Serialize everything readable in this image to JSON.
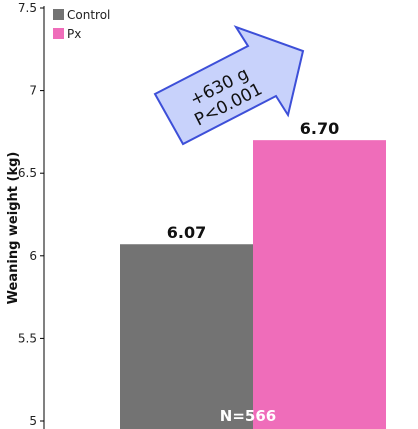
{
  "chart_data": {
    "type": "bar",
    "categories": [
      "Control",
      "Px"
    ],
    "values": [
      6.07,
      6.7
    ],
    "data_labels": [
      "6.07",
      "6.70"
    ],
    "colors": [
      "#737373",
      "#ef6dba"
    ],
    "ylabel": "Weaning weight (kg)",
    "ylim": [
      5,
      7.5
    ],
    "yticks": [
      5,
      5.5,
      6,
      6.5,
      7,
      7.5
    ],
    "ytick_labels": [
      "5",
      "5.5",
      "6",
      "6.5",
      "7",
      "7.5"
    ],
    "legend": {
      "position": "top-left",
      "items": [
        {
          "label": "Control",
          "color": "#737373"
        },
        {
          "label": "Px",
          "color": "#ef6dba"
        }
      ]
    },
    "annotations": {
      "arrow_line1": "+630 g",
      "arrow_line2": "P<0.001",
      "arrow_fill": "#c8d2fb",
      "arrow_stroke": "#3d4fd8",
      "sample_size": "N=566"
    }
  }
}
